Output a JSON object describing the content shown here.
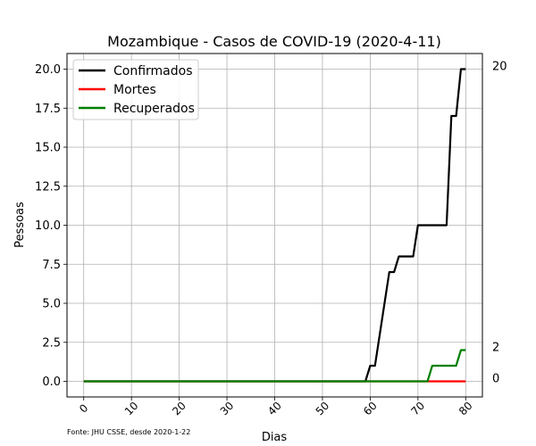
{
  "chart_data": {
    "type": "line",
    "title": "Mozambique - Casos de COVID-19 (2020-4-11)",
    "xlabel": "Dias",
    "ylabel": "Pessoas",
    "xlim": [
      -3.5,
      83.5
    ],
    "ylim": [
      -1.0,
      21.0
    ],
    "xticks": [
      0,
      10,
      20,
      30,
      40,
      50,
      60,
      70,
      80
    ],
    "xtick_labels": [
      "0",
      "10",
      "20",
      "30",
      "40",
      "50",
      "60",
      "70",
      "80"
    ],
    "yticks": [
      0,
      2.5,
      5,
      7.5,
      10,
      12.5,
      15,
      17.5,
      20
    ],
    "ytick_labels": [
      "0.0",
      "2.5",
      "5.0",
      "7.5",
      "10.0",
      "12.5",
      "15.0",
      "17.5",
      "20.0"
    ],
    "grid": true,
    "legend": "top-left",
    "footnote": "Fonte: JHU CSSE, desde 2020-1-22",
    "end_labels": [
      {
        "value": 20,
        "text": "20"
      },
      {
        "value": 2,
        "text": "2"
      },
      {
        "value": 0,
        "text": "0"
      }
    ],
    "x": [
      0,
      1,
      2,
      3,
      4,
      5,
      6,
      7,
      8,
      9,
      10,
      11,
      12,
      13,
      14,
      15,
      16,
      17,
      18,
      19,
      20,
      21,
      22,
      23,
      24,
      25,
      26,
      27,
      28,
      29,
      30,
      31,
      32,
      33,
      34,
      35,
      36,
      37,
      38,
      39,
      40,
      41,
      42,
      43,
      44,
      45,
      46,
      47,
      48,
      49,
      50,
      51,
      52,
      53,
      54,
      55,
      56,
      57,
      58,
      59,
      60,
      61,
      62,
      63,
      64,
      65,
      66,
      67,
      68,
      69,
      70,
      71,
      72,
      73,
      74,
      75,
      76,
      77,
      78,
      79,
      80
    ],
    "series": [
      {
        "name": "Confirmados",
        "color": "#000000",
        "values": [
          0,
          0,
          0,
          0,
          0,
          0,
          0,
          0,
          0,
          0,
          0,
          0,
          0,
          0,
          0,
          0,
          0,
          0,
          0,
          0,
          0,
          0,
          0,
          0,
          0,
          0,
          0,
          0,
          0,
          0,
          0,
          0,
          0,
          0,
          0,
          0,
          0,
          0,
          0,
          0,
          0,
          0,
          0,
          0,
          0,
          0,
          0,
          0,
          0,
          0,
          0,
          0,
          0,
          0,
          0,
          0,
          0,
          0,
          0,
          0,
          1,
          1,
          3,
          5,
          7,
          7,
          8,
          8,
          8,
          8,
          10,
          10,
          10,
          10,
          10,
          10,
          10,
          17,
          17,
          20,
          20
        ]
      },
      {
        "name": "Mortes",
        "color": "#ff0000",
        "values": [
          0,
          0,
          0,
          0,
          0,
          0,
          0,
          0,
          0,
          0,
          0,
          0,
          0,
          0,
          0,
          0,
          0,
          0,
          0,
          0,
          0,
          0,
          0,
          0,
          0,
          0,
          0,
          0,
          0,
          0,
          0,
          0,
          0,
          0,
          0,
          0,
          0,
          0,
          0,
          0,
          0,
          0,
          0,
          0,
          0,
          0,
          0,
          0,
          0,
          0,
          0,
          0,
          0,
          0,
          0,
          0,
          0,
          0,
          0,
          0,
          0,
          0,
          0,
          0,
          0,
          0,
          0,
          0,
          0,
          0,
          0,
          0,
          0,
          0,
          0,
          0,
          0,
          0,
          0,
          0,
          0
        ]
      },
      {
        "name": "Recuperados",
        "color": "#008000",
        "values": [
          0,
          0,
          0,
          0,
          0,
          0,
          0,
          0,
          0,
          0,
          0,
          0,
          0,
          0,
          0,
          0,
          0,
          0,
          0,
          0,
          0,
          0,
          0,
          0,
          0,
          0,
          0,
          0,
          0,
          0,
          0,
          0,
          0,
          0,
          0,
          0,
          0,
          0,
          0,
          0,
          0,
          0,
          0,
          0,
          0,
          0,
          0,
          0,
          0,
          0,
          0,
          0,
          0,
          0,
          0,
          0,
          0,
          0,
          0,
          0,
          0,
          0,
          0,
          0,
          0,
          0,
          0,
          0,
          0,
          0,
          0,
          0,
          0,
          1,
          1,
          1,
          1,
          1,
          1,
          2,
          2
        ]
      }
    ]
  }
}
